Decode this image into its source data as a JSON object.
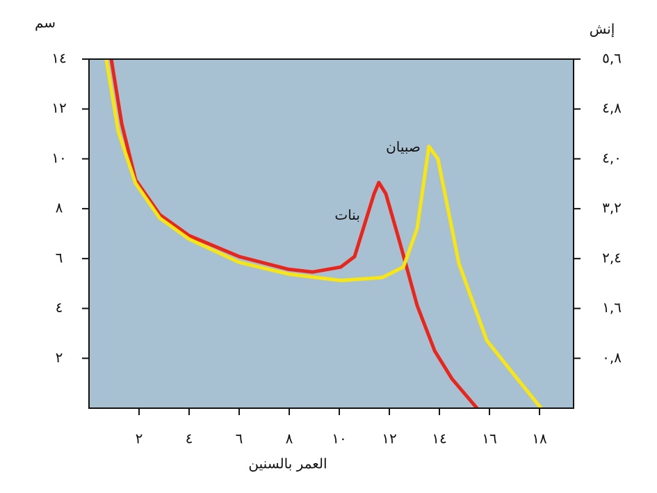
{
  "chart_data": {
    "type": "line",
    "y_label": "سم",
    "y2_label": "إنش",
    "x_label": "العمر بالسنين",
    "background": "#a8c1d2",
    "xlim": [
      0,
      19.36
    ],
    "xticks": [
      {
        "value": 2,
        "label": "٢"
      },
      {
        "value": 4,
        "label": "٤"
      },
      {
        "value": 6,
        "label": "٦"
      },
      {
        "value": 8,
        "label": "٨"
      },
      {
        "value": 10,
        "label": "١٠"
      },
      {
        "value": 12,
        "label": "١٢"
      },
      {
        "value": 14,
        "label": "١٤"
      },
      {
        "value": 16,
        "label": "١٦"
      },
      {
        "value": 18,
        "label": "١٨"
      }
    ],
    "ylim": [
      0,
      14
    ],
    "yticks": [
      {
        "value": 2,
        "label": "٢"
      },
      {
        "value": 4,
        "label": "٤"
      },
      {
        "value": 6,
        "label": "٦"
      },
      {
        "value": 8,
        "label": "٨"
      },
      {
        "value": 10,
        "label": "١٠"
      },
      {
        "value": 12,
        "label": "١٢"
      },
      {
        "value": 14,
        "label": "١٤"
      }
    ],
    "y2lim": [
      0,
      5.6
    ],
    "y2ticks": [
      {
        "value": 0.8,
        "label": "٠,٨"
      },
      {
        "value": 1.6,
        "label": "١,٦"
      },
      {
        "value": 2.4,
        "label": "٢,٤"
      },
      {
        "value": 3.2,
        "label": "٣,٢"
      },
      {
        "value": 4.0,
        "label": "٤,٠"
      },
      {
        "value": 4.8,
        "label": "٤,٨"
      },
      {
        "value": 5.6,
        "label": "٥,٦"
      }
    ],
    "series": [
      {
        "name": "بنات",
        "color": "#e8261c",
        "x": [
          0.89,
          1.31,
          1.86,
          2.83,
          4.0,
          6.0,
          7.97,
          8.94,
          10.06,
          10.61,
          11.39,
          11.58,
          11.86,
          12.42,
          13.11,
          13.81,
          14.5,
          15.5
        ],
        "values": [
          14,
          11.4,
          9.16,
          7.76,
          6.92,
          6.08,
          5.57,
          5.46,
          5.66,
          6.08,
          8.6,
          9.05,
          8.6,
          6.64,
          4.12,
          2.3,
          1.18,
          0
        ]
      },
      {
        "name": "صبيان",
        "color": "#f7e614",
        "x": [
          0.69,
          1.17,
          1.86,
          2.83,
          4.0,
          6.0,
          7.97,
          10.06,
          11.72,
          12.56,
          13.11,
          13.58,
          13.94,
          14.78,
          15.89,
          17.0,
          18.06
        ],
        "values": [
          14,
          11.1,
          9.02,
          7.62,
          6.78,
          5.85,
          5.38,
          5.12,
          5.24,
          5.66,
          7.2,
          10.5,
          10.0,
          5.8,
          2.72,
          1.32,
          0
        ]
      }
    ]
  }
}
